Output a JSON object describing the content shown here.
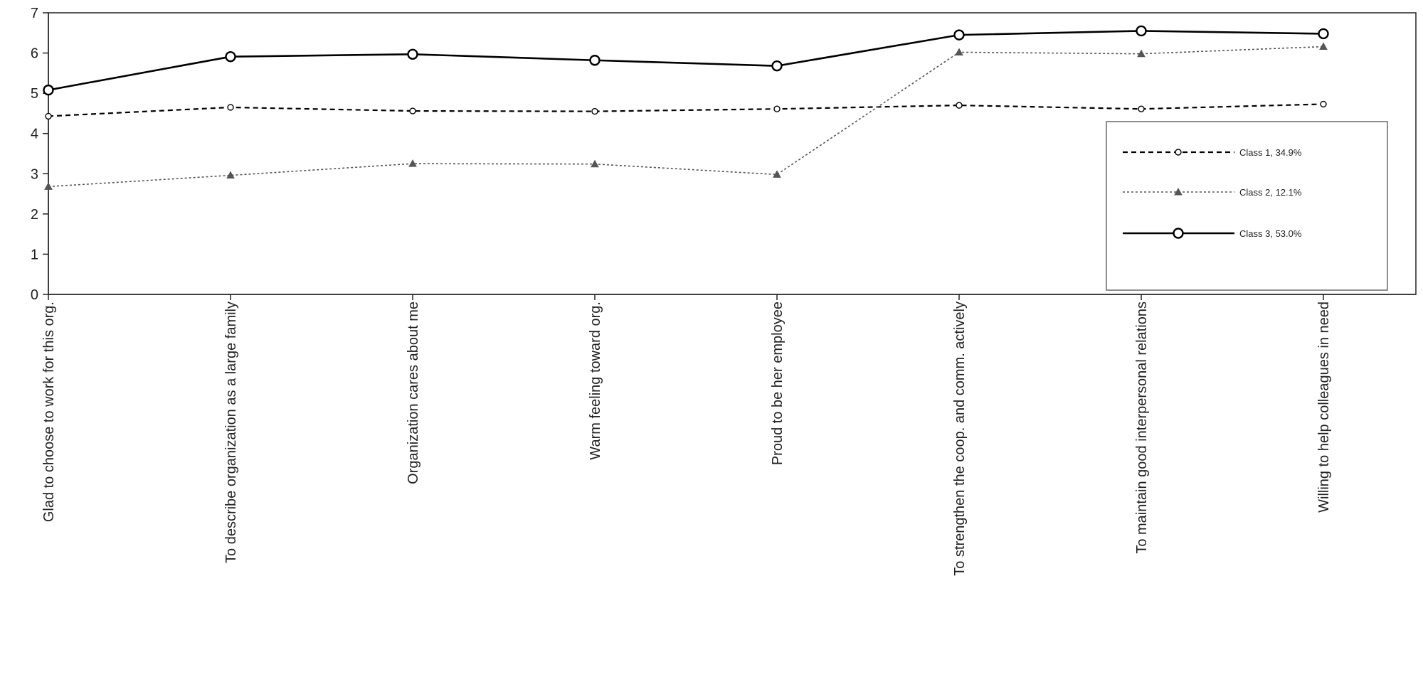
{
  "chart_data": {
    "type": "line",
    "title": "",
    "xlabel": "",
    "ylabel": "",
    "ylim": [
      0,
      7
    ],
    "yticks": [
      "0",
      "1",
      "2",
      "3",
      "4",
      "5",
      "6",
      "7"
    ],
    "grid": false,
    "legend_position": "right",
    "categories": [
      "Glad to choose to work for this org.",
      "To describe organization as a large family",
      "Organization cares about me",
      "Warm feeling toward org.",
      "Proud to be her employee",
      "To strengthen the coop. and comm. actively",
      "To maintain good interpersonal relations",
      "Willing to help colleagues in need"
    ],
    "series": [
      {
        "name": "Class 1, 34.9%",
        "values": [
          4.43,
          4.65,
          4.56,
          4.55,
          4.61,
          4.7,
          4.61,
          4.73
        ],
        "style": "dashed",
        "marker": "small-circle",
        "color": "#000000"
      },
      {
        "name": "Class 2, 12.1%",
        "values": [
          2.68,
          2.96,
          3.25,
          3.24,
          2.98,
          6.02,
          5.98,
          6.16
        ],
        "style": "dotted",
        "marker": "triangle",
        "color": "#555555"
      },
      {
        "name": "Class 3, 53.0%",
        "values": [
          5.08,
          5.91,
          5.97,
          5.82,
          5.68,
          6.45,
          6.55,
          6.48
        ],
        "style": "solid",
        "marker": "large-circle",
        "color": "#000000"
      }
    ]
  }
}
